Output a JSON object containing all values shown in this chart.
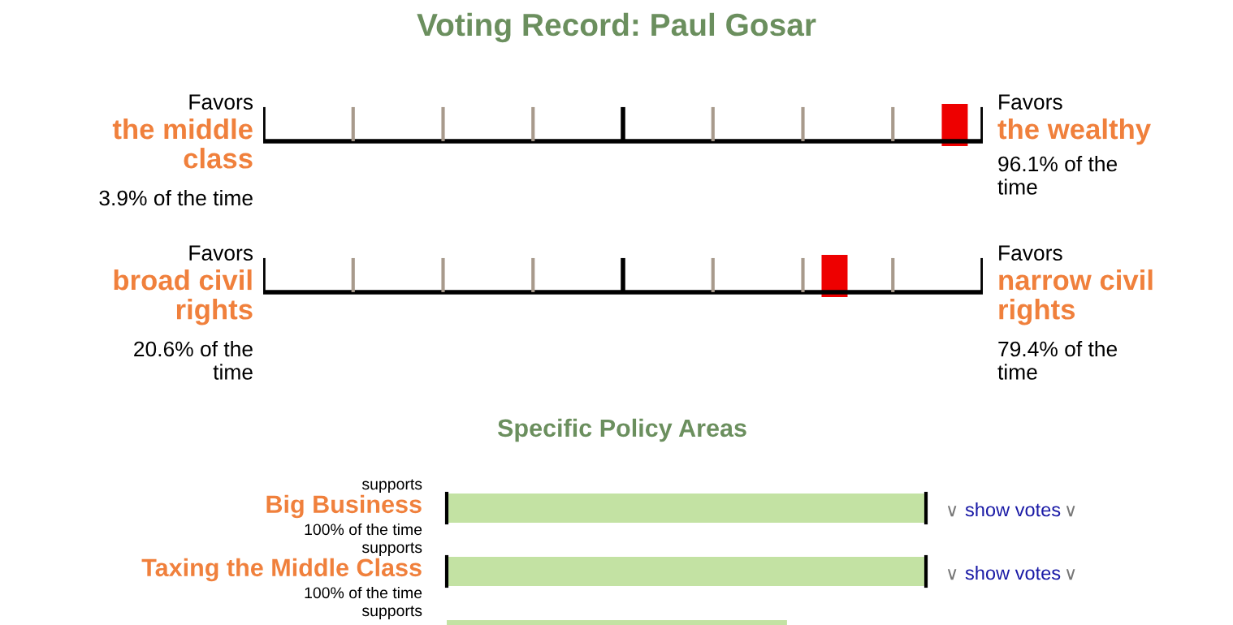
{
  "chart_data": [
    {
      "type": "other",
      "title": "Voting Record: Paul Gosar",
      "categories": [
        "the middle\nclass",
        "broad civil\nrights"
      ],
      "y2_categories": [
        "the wealthy",
        "narrow civil\nrights"
      ],
      "series": [
        {
          "values": [
            3.9,
            20.6
          ],
          "value_labels": [
            "3.9% of the time",
            "20.6% of the\ntime"
          ]
        },
        {
          "values": [
            96.1,
            79.4
          ],
          "value_labels": [
            "96.1% of the\ntime",
            "79.4% of the\ntime"
          ]
        }
      ],
      "color": "#ee0000",
      "annotations": [
        "Favors",
        "Favors",
        "Favors",
        "Favors"
      ]
    },
    {
      "type": "bar",
      "orientation": "horizontal",
      "title": "Specific Policy Areas",
      "categories": [
        "Big Business",
        "Taxing the Middle Class",
        null
      ],
      "values": [
        100,
        100,
        71
      ],
      "color": "#c3e2a3",
      "value_labels": [
        "100% of the time",
        "100% of the time",
        null
      ],
      "annotations": [
        "supports",
        "∨ show votes ∨",
        "supports",
        "∨ show votes ∨",
        "supports"
      ]
    }
  ]
}
